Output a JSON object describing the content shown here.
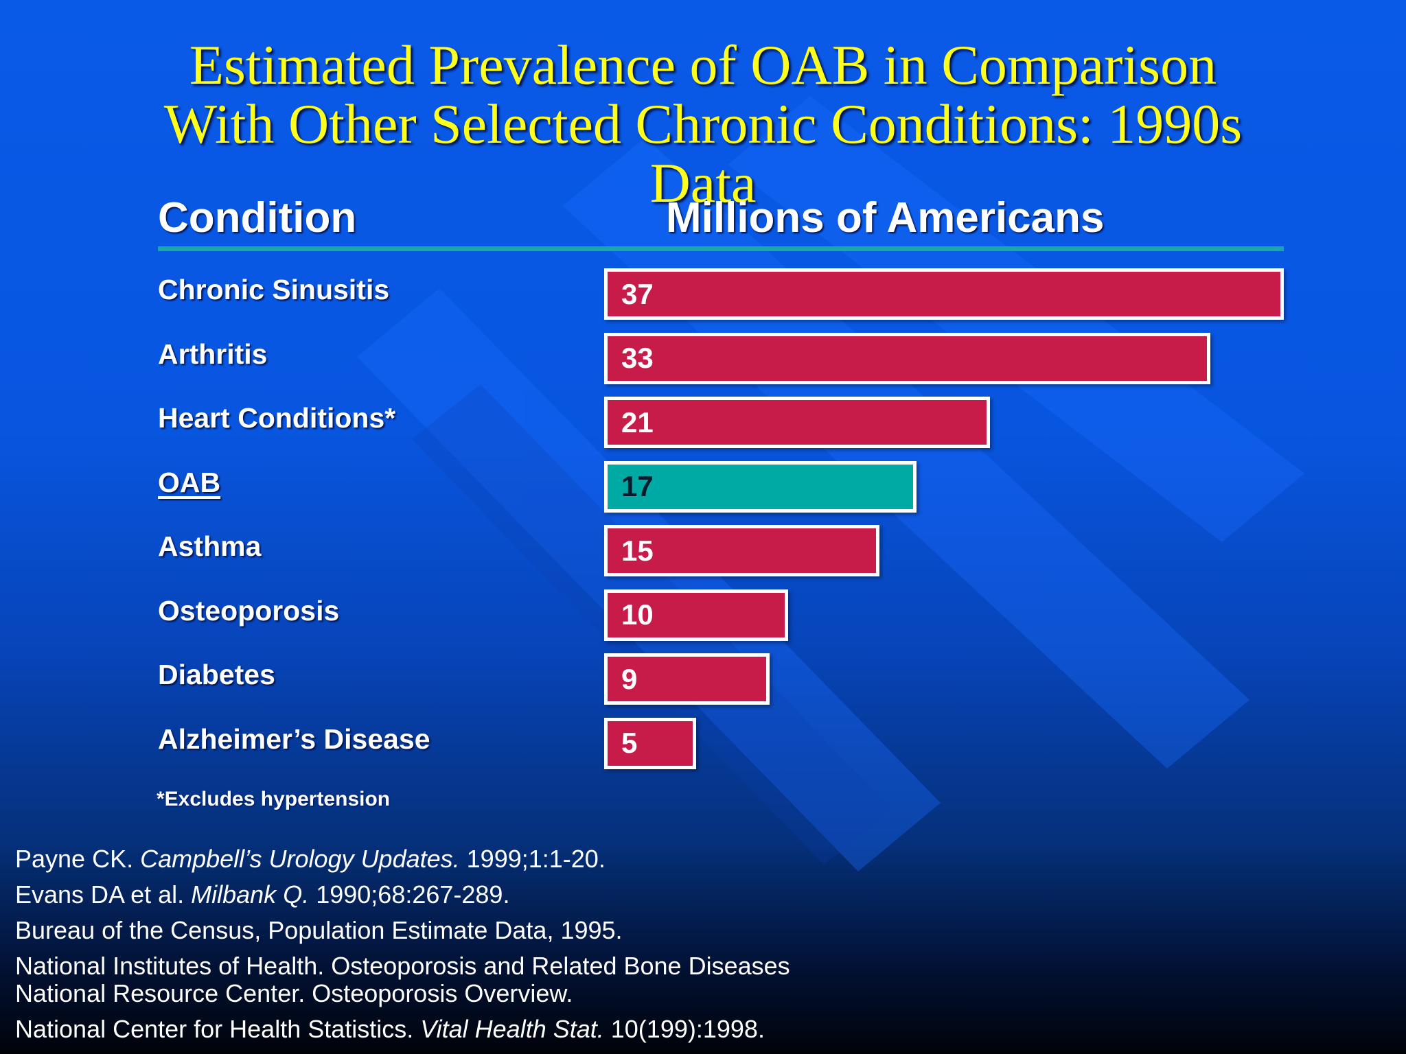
{
  "slide": {
    "title_lines": [
      "Estimated Prevalence of OAB in Comparison",
      "With Other Selected Chronic Conditions: 1990s",
      "Data"
    ],
    "condition_header": "Condition",
    "value_header": "Millions of Americans",
    "footnote": "*Excludes hypertension",
    "colors": {
      "bar": "#c71b49",
      "highlight_bar": "#00aaa4",
      "title": "#ffff1e",
      "rule": "#18a8a6"
    }
  },
  "chart_data": {
    "type": "bar",
    "orientation": "horizontal",
    "title": "Estimated Prevalence of OAB in Comparison With Other Selected Chronic Conditions: 1990s Data",
    "xlabel": "Millions of Americans",
    "ylabel": "Condition",
    "categories": [
      "Chronic Sinusitis",
      "Arthritis",
      "Heart Conditions*",
      "OAB",
      "Asthma",
      "Osteoporosis",
      "Diabetes",
      "Alzheimer’s Disease"
    ],
    "values": [
      37,
      33,
      21,
      17,
      15,
      10,
      9,
      5
    ],
    "value_labels": [
      "37",
      "33",
      "21",
      "17",
      "15",
      "10",
      "9",
      "5"
    ],
    "highlight_category": "OAB",
    "xlim": [
      0,
      37
    ],
    "grid": false
  },
  "references": [
    {
      "parts": [
        {
          "text": "Payne CK. ",
          "italic": false
        },
        {
          "text": "Campbell’s Urology Updates.",
          "italic": true
        },
        {
          "text": " 1999;1:1-20.",
          "italic": false
        }
      ]
    },
    {
      "parts": [
        {
          "text": "Evans DA et al. ",
          "italic": false
        },
        {
          "text": "Milbank Q.",
          "italic": true
        },
        {
          "text": " 1990;68:267-289.",
          "italic": false
        }
      ]
    },
    {
      "parts": [
        {
          "text": "Bureau of the Census, Population Estimate Data, 1995.",
          "italic": false
        }
      ]
    },
    {
      "parts": [
        {
          "text": "National Institutes of Health.  Osteoporosis and Related Bone Diseases",
          "italic": false
        },
        {
          "text": "National Resource Center. Osteoporosis Overview.",
          "italic": false,
          "newline": true
        }
      ]
    },
    {
      "parts": [
        {
          "text": "National Center for Health Statistics. ",
          "italic": false
        },
        {
          "text": "Vital Health Stat.",
          "italic": true
        },
        {
          "text": " 10(199):1998.",
          "italic": false
        }
      ]
    }
  ]
}
